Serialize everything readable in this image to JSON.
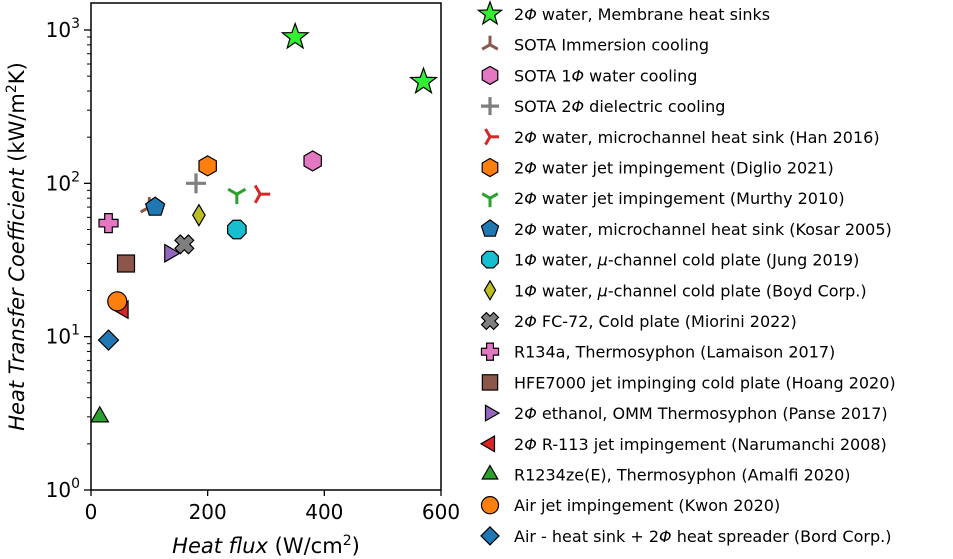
{
  "chart_data": {
    "type": "scatter",
    "title": "",
    "xlabel": "Heat flux (W/cm2)",
    "xlabel_parts": {
      "name": "Heat flux",
      "unit_open": " (W/cm",
      "unit_sup": "2",
      "unit_close": ")"
    },
    "ylabel": "Heat Transfer Coefficient (kW/m2K)",
    "ylabel_parts": {
      "name": "Heat Transfer Coefficient",
      "unit_open": " (kW/m",
      "unit_sup": "2",
      "unit_close": "K)"
    },
    "xlim": [
      0,
      600
    ],
    "ylim": [
      1,
      1500
    ],
    "yscale": "log",
    "x_ticks": [
      "0",
      "200",
      "400",
      "600"
    ],
    "y_ticks": [
      {
        "value": 1,
        "base": "10",
        "exp": "0"
      },
      {
        "value": 10,
        "base": "10",
        "exp": "1"
      },
      {
        "value": 100,
        "base": "10",
        "exp": "2"
      },
      {
        "value": 1000,
        "base": "10",
        "exp": "3"
      }
    ],
    "grid": false,
    "legend_position": "outside-right",
    "series": [
      {
        "name": "2Φ water, Membrane heat sinks",
        "marker": "star",
        "color": "#33ee33",
        "points": [
          [
            350,
            900
          ],
          [
            570,
            460
          ]
        ]
      },
      {
        "name": "SOTA Immersion cooling",
        "marker": "tri_down",
        "color": "#8c564b",
        "points": [
          [
            100,
            70
          ]
        ]
      },
      {
        "name": "SOTA 1Φ water cooling",
        "marker": "hexagon",
        "color": "#e377c2",
        "points": [
          [
            380,
            140
          ]
        ]
      },
      {
        "name": "SOTA 2Φ dielectric cooling",
        "marker": "plus",
        "color": "#7f7f7f",
        "points": [
          [
            180,
            100
          ]
        ]
      },
      {
        "name": "2Φ water, microchannel heat sink (Han 2016)",
        "marker": "tri_left",
        "color": "#d62728",
        "points": [
          [
            290,
            85
          ]
        ]
      },
      {
        "name": "2Φ water jet impingement (Diglio 2021)",
        "marker": "hexagon",
        "color": "#ff7f0e",
        "points": [
          [
            200,
            130
          ]
        ]
      },
      {
        "name": "2Φ water jet impingement (Murthy 2010)",
        "marker": "tri_up",
        "color": "#2ca02c",
        "points": [
          [
            250,
            85
          ]
        ]
      },
      {
        "name": "2Φ water, microchannel heat sink (Kosar 2005)",
        "marker": "pentagon",
        "color": "#1f77b4",
        "points": [
          [
            110,
            70
          ]
        ]
      },
      {
        "name": "1Φ water, μ-channel cold plate (Jung 2019)",
        "marker": "octagon",
        "color": "#17becf",
        "points": [
          [
            250,
            50
          ]
        ]
      },
      {
        "name": "1Φ water, μ-channel cold plate (Boyd Corp.)",
        "marker": "thin_diamond",
        "color": "#bcbd22",
        "points": [
          [
            185,
            62
          ]
        ]
      },
      {
        "name": "2Φ FC-72, Cold plate (Miorini 2022)",
        "marker": "x_filled",
        "color": "#7f7f7f",
        "points": [
          [
            160,
            40
          ]
        ]
      },
      {
        "name": "R134a, Thermosyphon (Lamaison 2017)",
        "marker": "plus_filled",
        "color": "#e377c2",
        "points": [
          [
            30,
            55
          ]
        ]
      },
      {
        "name": "HFE7000 jet impinging cold plate (Hoang 2020)",
        "marker": "square",
        "color": "#8c564b",
        "points": [
          [
            60,
            30
          ]
        ]
      },
      {
        "name": "2Φ ethanol, OMM Thermosyphon (Panse 2017)",
        "marker": "triangle_right",
        "color": "#9467bd",
        "points": [
          [
            135,
            35
          ]
        ]
      },
      {
        "name": "2Φ R-113 jet impingement (Narumanchi 2008)",
        "marker": "triangle_left",
        "color": "#d62728",
        "points": [
          [
            55,
            15
          ]
        ]
      },
      {
        "name": "R1234ze(E), Thermosyphon (Amalfi 2020)",
        "marker": "triangle_up",
        "color": "#2ca02c",
        "points": [
          [
            15,
            3
          ]
        ]
      },
      {
        "name": "Air jet impingement (Kwon 2020)",
        "marker": "circle",
        "color": "#ff7f0e",
        "points": [
          [
            45,
            17
          ]
        ]
      },
      {
        "name": "Air - heat sink + 2Φ heat spreader (Bord Corp.)",
        "marker": "diamond",
        "color": "#1f77b4",
        "points": [
          [
            30,
            9.5
          ]
        ]
      }
    ]
  }
}
